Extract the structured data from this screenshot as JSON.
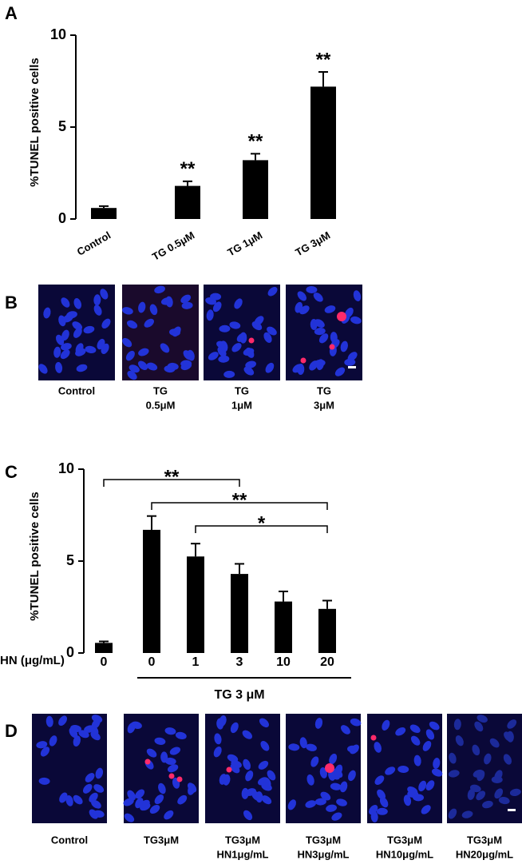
{
  "panel_labels": [
    "A",
    "B",
    "C",
    "D"
  ],
  "chart_data": [
    {
      "type": "bar",
      "ylabel": "%TUNEL positive cells",
      "categories": [
        "Control",
        "TG 0.5μM",
        "TG 1μM",
        "TG 3μM"
      ],
      "values": [
        0.6,
        1.8,
        3.2,
        7.2
      ],
      "errors": [
        0.1,
        0.25,
        0.35,
        0.8
      ],
      "significance": [
        null,
        "**",
        "**",
        "**"
      ],
      "color": "#000000",
      "ylim": [
        0,
        10
      ],
      "yticks": [
        0,
        5,
        10
      ]
    },
    {
      "type": "bar",
      "ylabel": "%TUNEL positive cells",
      "x_label": "HN (μg/mL)",
      "categories": [
        "0",
        "0",
        "1",
        "3",
        "10",
        "20"
      ],
      "values": [
        0.55,
        6.7,
        5.25,
        4.3,
        2.8,
        2.4
      ],
      "errors": [
        0.08,
        0.75,
        0.7,
        0.55,
        0.55,
        0.45
      ],
      "group_label": "TG 3 μM",
      "brackets": [
        {
          "label": "**",
          "from": 0,
          "to": 3
        },
        {
          "label": "**",
          "from": 1,
          "to": 5
        },
        {
          "label": "*",
          "from": 2,
          "to": 5
        }
      ],
      "color": "#000000",
      "ylim": [
        0,
        10
      ],
      "yticks": [
        0,
        5,
        10
      ]
    }
  ],
  "image_rows": [
    {
      "captions": [
        [
          "Control"
        ],
        [
          "TG",
          "0.5μM"
        ],
        [
          "TG",
          "1μM"
        ],
        [
          "TG",
          "3μM"
        ]
      ]
    },
    {
      "captions": [
        [
          "Control"
        ],
        [
          "TG3μM"
        ],
        [
          "TG3μM",
          "HN1μg/mL"
        ],
        [
          "TG3μM",
          "HN3μg/mL"
        ],
        [
          "TG3μM",
          "HN10μg/mL"
        ],
        [
          "TG3μM",
          "HN20μg/mL"
        ]
      ]
    }
  ]
}
